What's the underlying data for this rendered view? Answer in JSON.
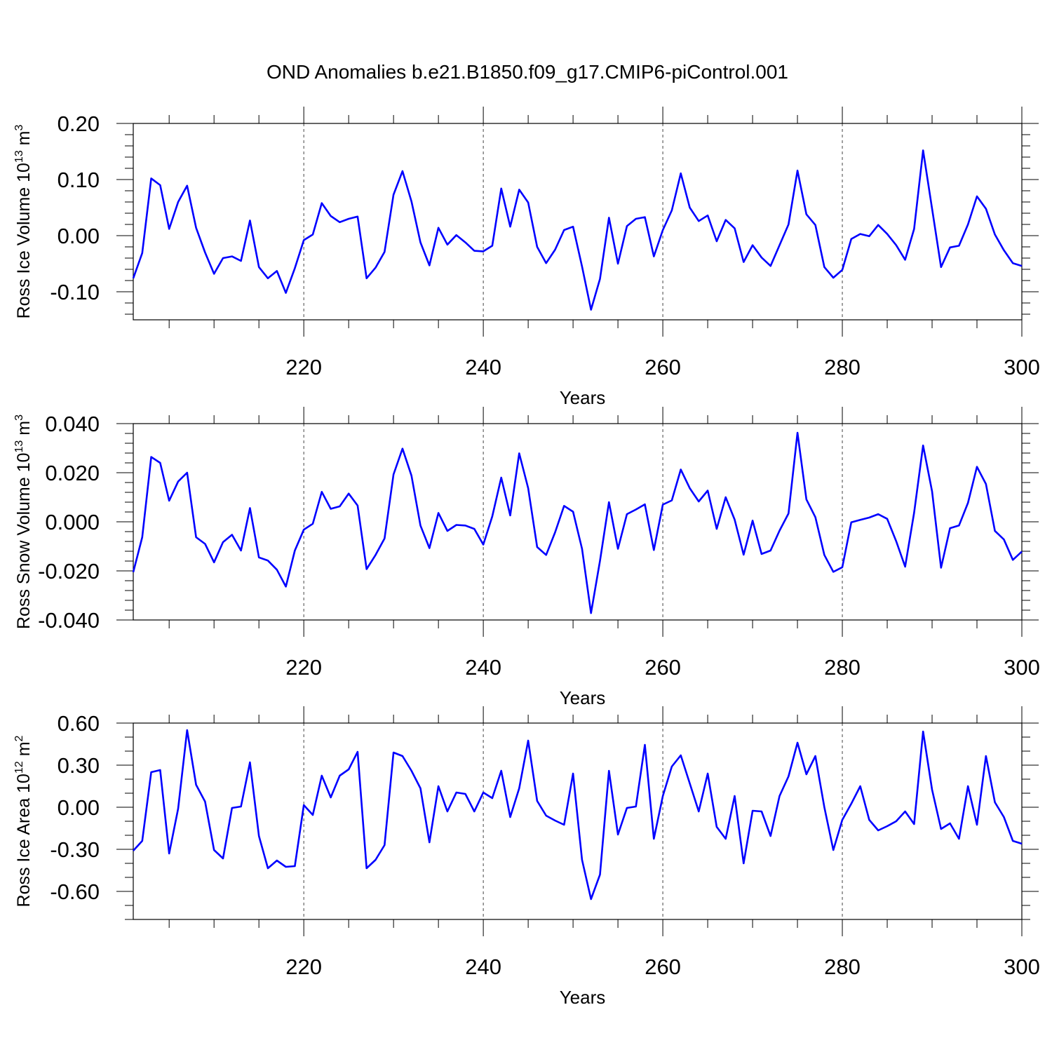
{
  "title": "OND Anomalies b.e21.B1850.f09_g17.CMIP6-piControl.001",
  "colors": {
    "line": "#0000ff",
    "axis": "#000000",
    "grid": "#444444"
  },
  "chart_data": [
    {
      "type": "line",
      "ylabel": "Ross Ice Volume 10",
      "ylabel_exp": "13",
      "ylabel_unit": " m",
      "ylabel_unit_exp": "3",
      "xlabel": "Years",
      "xlim": [
        201,
        300
      ],
      "ylim": [
        -0.15,
        0.2
      ],
      "grid": "vertical dashed at x-ticks",
      "x_ticks": [
        220,
        240,
        260,
        280,
        300
      ],
      "x_tick_labels": [
        "220",
        "240",
        "260",
        "280",
        "300"
      ],
      "y_ticks": [
        0.2,
        0.1,
        0.0,
        -0.1
      ],
      "y_tick_labels": [
        "0.20",
        "0.10",
        "0.00",
        "-0.10"
      ],
      "y_minor_step": 0.02,
      "x": [
        201,
        202,
        203,
        204,
        205,
        206,
        207,
        208,
        209,
        210,
        211,
        212,
        213,
        214,
        215,
        216,
        217,
        218,
        219,
        220,
        221,
        222,
        223,
        224,
        225,
        226,
        227,
        228,
        229,
        230,
        231,
        232,
        233,
        234,
        235,
        236,
        237,
        238,
        239,
        240,
        241,
        242,
        243,
        244,
        245,
        246,
        247,
        248,
        249,
        250,
        251,
        252,
        253,
        254,
        255,
        256,
        257,
        258,
        259,
        260,
        261,
        262,
        263,
        264,
        265,
        266,
        267,
        268,
        269,
        270,
        271,
        272,
        273,
        274,
        275,
        276,
        277,
        278,
        279,
        280,
        281,
        282,
        283,
        284,
        285,
        286,
        287,
        288,
        289,
        290,
        291,
        292,
        293,
        294,
        295,
        296,
        297,
        298,
        299,
        300
      ],
      "series": [
        {
          "values": [
            -0.076,
            -0.031,
            0.102,
            0.09,
            0.012,
            0.06,
            0.089,
            0.014,
            -0.03,
            -0.068,
            -0.04,
            -0.037,
            -0.045,
            0.027,
            -0.056,
            -0.076,
            -0.063,
            -0.102,
            -0.058,
            -0.008,
            0.002,
            0.058,
            0.035,
            0.024,
            0.03,
            0.034,
            -0.076,
            -0.057,
            -0.029,
            0.073,
            0.115,
            0.061,
            -0.012,
            -0.053,
            0.014,
            -0.016,
            0.001,
            -0.012,
            -0.027,
            -0.028,
            -0.018,
            0.084,
            0.016,
            0.082,
            0.059,
            -0.02,
            -0.049,
            -0.025,
            0.01,
            0.016,
            -0.055,
            -0.132,
            -0.077,
            0.032,
            -0.05,
            0.017,
            0.03,
            0.033,
            -0.037,
            0.01,
            0.045,
            0.111,
            0.05,
            0.026,
            0.036,
            -0.01,
            0.028,
            0.013,
            -0.047,
            -0.017,
            -0.039,
            -0.054,
            -0.017,
            0.02,
            0.116,
            0.038,
            0.019,
            -0.056,
            -0.075,
            -0.061,
            -0.006,
            0.003,
            -0.001,
            0.019,
            0.003,
            -0.017,
            -0.043,
            0.012,
            0.152,
            0.048,
            -0.056,
            -0.021,
            -0.018,
            0.02,
            0.07,
            0.048,
            0.002,
            -0.026,
            -0.049,
            -0.054
          ]
        }
      ]
    },
    {
      "type": "line",
      "ylabel": "Ross Snow Volume 10",
      "ylabel_exp": "13",
      "ylabel_unit": " m",
      "ylabel_unit_exp": "3",
      "xlabel": "Years",
      "xlim": [
        201,
        300
      ],
      "ylim": [
        -0.04,
        0.04
      ],
      "grid": "vertical dashed at x-ticks",
      "x_ticks": [
        220,
        240,
        260,
        280,
        300
      ],
      "x_tick_labels": [
        "220",
        "240",
        "260",
        "280",
        "300"
      ],
      "y_ticks": [
        0.04,
        0.02,
        0.0,
        -0.02,
        -0.04
      ],
      "y_tick_labels": [
        "0.040",
        "0.020",
        "0.000",
        "-0.020",
        "-0.040"
      ],
      "y_minor_step": 0.004,
      "x": [
        201,
        202,
        203,
        204,
        205,
        206,
        207,
        208,
        209,
        210,
        211,
        212,
        213,
        214,
        215,
        216,
        217,
        218,
        219,
        220,
        221,
        222,
        223,
        224,
        225,
        226,
        227,
        228,
        229,
        230,
        231,
        232,
        233,
        234,
        235,
        236,
        237,
        238,
        239,
        240,
        241,
        242,
        243,
        244,
        245,
        246,
        247,
        248,
        249,
        250,
        251,
        252,
        253,
        254,
        255,
        256,
        257,
        258,
        259,
        260,
        261,
        262,
        263,
        264,
        265,
        266,
        267,
        268,
        269,
        270,
        271,
        272,
        273,
        274,
        275,
        276,
        277,
        278,
        279,
        280,
        281,
        282,
        283,
        284,
        285,
        286,
        287,
        288,
        289,
        290,
        291,
        292,
        293,
        294,
        295,
        296,
        297,
        298,
        299,
        300
      ],
      "series": [
        {
          "values": [
            -0.0205,
            -0.0063,
            0.0264,
            0.024,
            0.0086,
            0.0164,
            0.02,
            -0.0063,
            -0.009,
            -0.0165,
            -0.0083,
            -0.0053,
            -0.0117,
            0.0056,
            -0.0145,
            -0.0158,
            -0.0195,
            -0.0264,
            -0.0117,
            -0.0032,
            -0.0008,
            0.0122,
            0.0053,
            0.0063,
            0.0115,
            0.0066,
            -0.0193,
            -0.0135,
            -0.0068,
            0.0193,
            0.0298,
            0.0188,
            -0.0015,
            -0.0107,
            0.0036,
            -0.0037,
            -0.0013,
            -0.0015,
            -0.0029,
            -0.0093,
            0.0022,
            0.018,
            0.0026,
            0.0279,
            0.0137,
            -0.0103,
            -0.0135,
            -0.0043,
            0.0065,
            0.0041,
            -0.011,
            -0.0372,
            -0.0159,
            0.008,
            -0.011,
            0.0031,
            0.005,
            0.0071,
            -0.0115,
            0.007,
            0.0087,
            0.0213,
            0.0137,
            0.0083,
            0.0127,
            -0.0029,
            0.01,
            0.0009,
            -0.0134,
            0.0005,
            -0.0131,
            -0.0117,
            -0.0036,
            0.0034,
            0.0363,
            0.0091,
            0.0019,
            -0.0135,
            -0.0204,
            -0.0185,
            -0.0002,
            0.0008,
            0.0017,
            0.0031,
            0.0012,
            -0.0079,
            -0.0183,
            0.0037,
            0.0311,
            0.0124,
            -0.0187,
            -0.0026,
            -0.0015,
            0.0077,
            0.0224,
            0.0154,
            -0.0037,
            -0.0072,
            -0.0155,
            -0.0121
          ]
        }
      ]
    },
    {
      "type": "line",
      "ylabel": "Ross Ice Area 10",
      "ylabel_exp": "12",
      "ylabel_unit": " m",
      "ylabel_unit_exp": "2",
      "xlabel": "Years",
      "xlim": [
        201,
        300
      ],
      "ylim": [
        -0.8,
        0.6
      ],
      "grid": "vertical dashed at x-ticks",
      "x_ticks": [
        220,
        240,
        260,
        280,
        300
      ],
      "x_tick_labels": [
        "220",
        "240",
        "260",
        "280",
        "300"
      ],
      "y_ticks": [
        0.6,
        0.3,
        0.0,
        -0.3,
        -0.6
      ],
      "y_tick_labels": [
        "0.60",
        "0.30",
        "0.00",
        "-0.30",
        "-0.60"
      ],
      "y_minor_step": 0.1,
      "x": [
        201,
        202,
        203,
        204,
        205,
        206,
        207,
        208,
        209,
        210,
        211,
        212,
        213,
        214,
        215,
        216,
        217,
        218,
        219,
        220,
        221,
        222,
        223,
        224,
        225,
        226,
        227,
        228,
        229,
        230,
        231,
        232,
        233,
        234,
        235,
        236,
        237,
        238,
        239,
        240,
        241,
        242,
        243,
        244,
        245,
        246,
        247,
        248,
        249,
        250,
        251,
        252,
        253,
        254,
        255,
        256,
        257,
        258,
        259,
        260,
        261,
        262,
        263,
        264,
        265,
        266,
        267,
        268,
        269,
        270,
        271,
        272,
        273,
        274,
        275,
        276,
        277,
        278,
        279,
        280,
        281,
        282,
        283,
        284,
        285,
        286,
        287,
        288,
        289,
        290,
        291,
        292,
        293,
        294,
        295,
        296,
        297,
        298,
        299,
        300
      ],
      "series": [
        {
          "values": [
            -0.31,
            -0.24,
            0.25,
            0.265,
            -0.33,
            -0.01,
            0.55,
            0.16,
            0.04,
            -0.305,
            -0.365,
            -0.005,
            0.005,
            0.32,
            -0.205,
            -0.435,
            -0.38,
            -0.425,
            -0.42,
            0.015,
            -0.055,
            0.225,
            0.07,
            0.225,
            0.27,
            0.395,
            -0.435,
            -0.375,
            -0.27,
            0.39,
            0.365,
            0.26,
            0.135,
            -0.25,
            0.15,
            -0.03,
            0.105,
            0.095,
            -0.03,
            0.105,
            0.065,
            0.26,
            -0.07,
            0.135,
            0.475,
            0.045,
            -0.06,
            -0.095,
            -0.125,
            0.24,
            -0.375,
            -0.655,
            -0.48,
            0.26,
            -0.195,
            -0.005,
            0.005,
            0.445,
            -0.225,
            0.08,
            0.29,
            0.37,
            0.17,
            -0.03,
            0.24,
            -0.14,
            -0.225,
            0.08,
            -0.4,
            -0.025,
            -0.03,
            -0.205,
            0.08,
            0.22,
            0.46,
            0.235,
            0.365,
            0.0,
            -0.305,
            -0.09,
            0.025,
            0.15,
            -0.09,
            -0.165,
            -0.135,
            -0.1,
            -0.03,
            -0.12,
            0.54,
            0.125,
            -0.155,
            -0.115,
            -0.225,
            0.15,
            -0.125,
            0.365,
            0.035,
            -0.07,
            -0.24,
            -0.26
          ]
        }
      ]
    }
  ]
}
